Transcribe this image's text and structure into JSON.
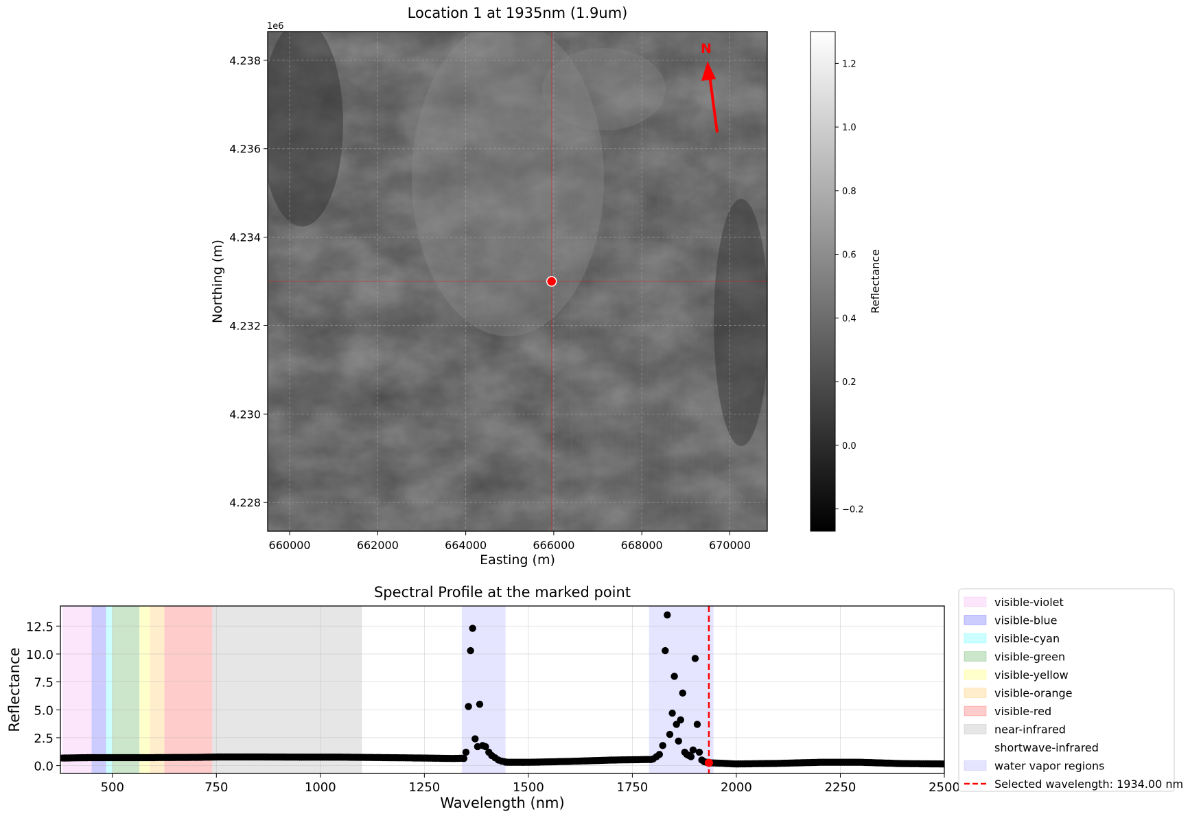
{
  "chart_data": [
    {
      "type": "heatmap",
      "title": "Location 1 at 1935nm (1.9um)",
      "xlabel": "Easting (m)",
      "ylabel": "Northing (m)",
      "y_offset_label": "1e6",
      "xlim": [
        659500,
        670850
      ],
      "ylim": [
        4.22735,
        4.23865
      ],
      "xticks": [
        660000,
        662000,
        664000,
        666000,
        668000,
        670000
      ],
      "xtick_labels": [
        "660000",
        "662000",
        "664000",
        "666000",
        "668000",
        "670000"
      ],
      "yticks": [
        4.228,
        4.23,
        4.232,
        4.234,
        4.236,
        4.238
      ],
      "ytick_labels": [
        "4.228",
        "4.230",
        "4.232",
        "4.234",
        "4.236",
        "4.238"
      ],
      "grid": true,
      "colormap": "gray",
      "marked_point": {
        "easting": 665950,
        "northing": 4.233
      },
      "north_arrow": {
        "label": "N",
        "color": "#ff0000"
      },
      "colorbar": {
        "label": "Reflectance",
        "range": [
          -0.27,
          1.3
        ],
        "ticks": [
          -0.2,
          0.0,
          0.2,
          0.4,
          0.6,
          0.8,
          1.0,
          1.2
        ],
        "tick_labels": [
          "−0.2",
          "0.0",
          "0.2",
          "0.4",
          "0.6",
          "0.8",
          "1.0",
          "1.2"
        ]
      }
    },
    {
      "type": "scatter",
      "title": "Spectral Profile at the marked point",
      "xlabel": "Wavelength (nm)",
      "ylabel": "Reflectance",
      "xlim": [
        375,
        2500
      ],
      "ylim": [
        -0.7,
        14.3
      ],
      "xticks": [
        500,
        750,
        1000,
        1250,
        1500,
        1750,
        2000,
        2250,
        2500
      ],
      "xtick_labels": [
        "500",
        "750",
        "1000",
        "1250",
        "1500",
        "1750",
        "2000",
        "2250",
        "2500"
      ],
      "yticks": [
        0.0,
        2.5,
        5.0,
        7.5,
        10.0,
        12.5
      ],
      "ytick_labels": [
        "0.0",
        "2.5",
        "5.0",
        "7.5",
        "10.0",
        "12.5"
      ],
      "grid": true,
      "legend_position": "right",
      "regions": [
        {
          "name": "visible-violet",
          "range": [
            380,
            450
          ],
          "color": "#ee82ee",
          "alpha": 0.2
        },
        {
          "name": "visible-blue",
          "range": [
            450,
            485
          ],
          "color": "#0000ff",
          "alpha": 0.2
        },
        {
          "name": "visible-cyan",
          "range": [
            485,
            500
          ],
          "color": "#00ffff",
          "alpha": 0.2
        },
        {
          "name": "visible-green",
          "range": [
            500,
            565
          ],
          "color": "#008000",
          "alpha": 0.2
        },
        {
          "name": "visible-yellow",
          "range": [
            565,
            590
          ],
          "color": "#ffff00",
          "alpha": 0.2
        },
        {
          "name": "visible-orange",
          "range": [
            590,
            625
          ],
          "color": "#ffa500",
          "alpha": 0.2
        },
        {
          "name": "visible-red",
          "range": [
            625,
            740
          ],
          "color": "#ff0000",
          "alpha": 0.2
        },
        {
          "name": "near-infrared",
          "range": [
            740,
            1100
          ],
          "color": "#808080",
          "alpha": 0.2
        },
        {
          "name": "shortwave-infrared",
          "range": [
            1100,
            2500
          ],
          "color": "#ffffff",
          "alpha": 0.2
        },
        {
          "name": "water vapor regions",
          "range": [
            1340,
            1445
          ],
          "color": "#0000ff",
          "alpha": 0.1
        },
        {
          "name": "",
          "range": [
            1790,
            1945
          ],
          "color": "#0000ff",
          "alpha": 0.1
        }
      ],
      "selected_wavelength": {
        "value": 1934.0,
        "label": "Selected wavelength: 1934.00 nm",
        "color": "#ff0000"
      },
      "baseline": [
        [
          380,
          0.68
        ],
        [
          450,
          0.72
        ],
        [
          520,
          0.72
        ],
        [
          600,
          0.72
        ],
        [
          700,
          0.74
        ],
        [
          760,
          0.78
        ],
        [
          850,
          0.78
        ],
        [
          950,
          0.76
        ],
        [
          1050,
          0.76
        ],
        [
          1150,
          0.72
        ],
        [
          1250,
          0.68
        ],
        [
          1320,
          0.64
        ],
        [
          1340,
          0.66
        ],
        [
          1450,
          0.3
        ],
        [
          1500,
          0.3
        ],
        [
          1600,
          0.38
        ],
        [
          1700,
          0.5
        ],
        [
          1790,
          0.55
        ],
        [
          1940,
          0.25
        ],
        [
          2000,
          0.15
        ],
        [
          2100,
          0.2
        ],
        [
          2200,
          0.3
        ],
        [
          2300,
          0.3
        ],
        [
          2400,
          0.18
        ],
        [
          2500,
          0.15
        ]
      ],
      "peak_points": [
        [
          1350,
          1.2
        ],
        [
          1356,
          5.3
        ],
        [
          1361,
          10.3
        ],
        [
          1366,
          12.3
        ],
        [
          1372,
          2.4
        ],
        [
          1378,
          1.7
        ],
        [
          1383,
          5.5
        ],
        [
          1390,
          1.8
        ],
        [
          1397,
          1.7
        ],
        [
          1405,
          1.2
        ],
        [
          1412,
          0.9
        ],
        [
          1420,
          0.7
        ],
        [
          1428,
          0.5
        ],
        [
          1436,
          0.4
        ],
        [
          1443,
          0.35
        ],
        [
          1800,
          0.6
        ],
        [
          1808,
          0.8
        ],
        [
          1815,
          1.0
        ],
        [
          1823,
          1.8
        ],
        [
          1829,
          10.3
        ],
        [
          1834,
          13.5
        ],
        [
          1840,
          2.8
        ],
        [
          1846,
          4.7
        ],
        [
          1851,
          8.0
        ],
        [
          1856,
          3.7
        ],
        [
          1861,
          2.2
        ],
        [
          1866,
          4.1
        ],
        [
          1871,
          6.5
        ],
        [
          1876,
          1.2
        ],
        [
          1881,
          1.0
        ],
        [
          1886,
          0.9
        ],
        [
          1891,
          0.8
        ],
        [
          1896,
          1.4
        ],
        [
          1901,
          9.6
        ],
        [
          1906,
          3.7
        ],
        [
          1911,
          1.2
        ],
        [
          1917,
          0.5
        ],
        [
          1923,
          0.35
        ],
        [
          1928,
          0.3
        ]
      ],
      "selected_point": {
        "x": 1934,
        "y": 0.25
      }
    }
  ]
}
